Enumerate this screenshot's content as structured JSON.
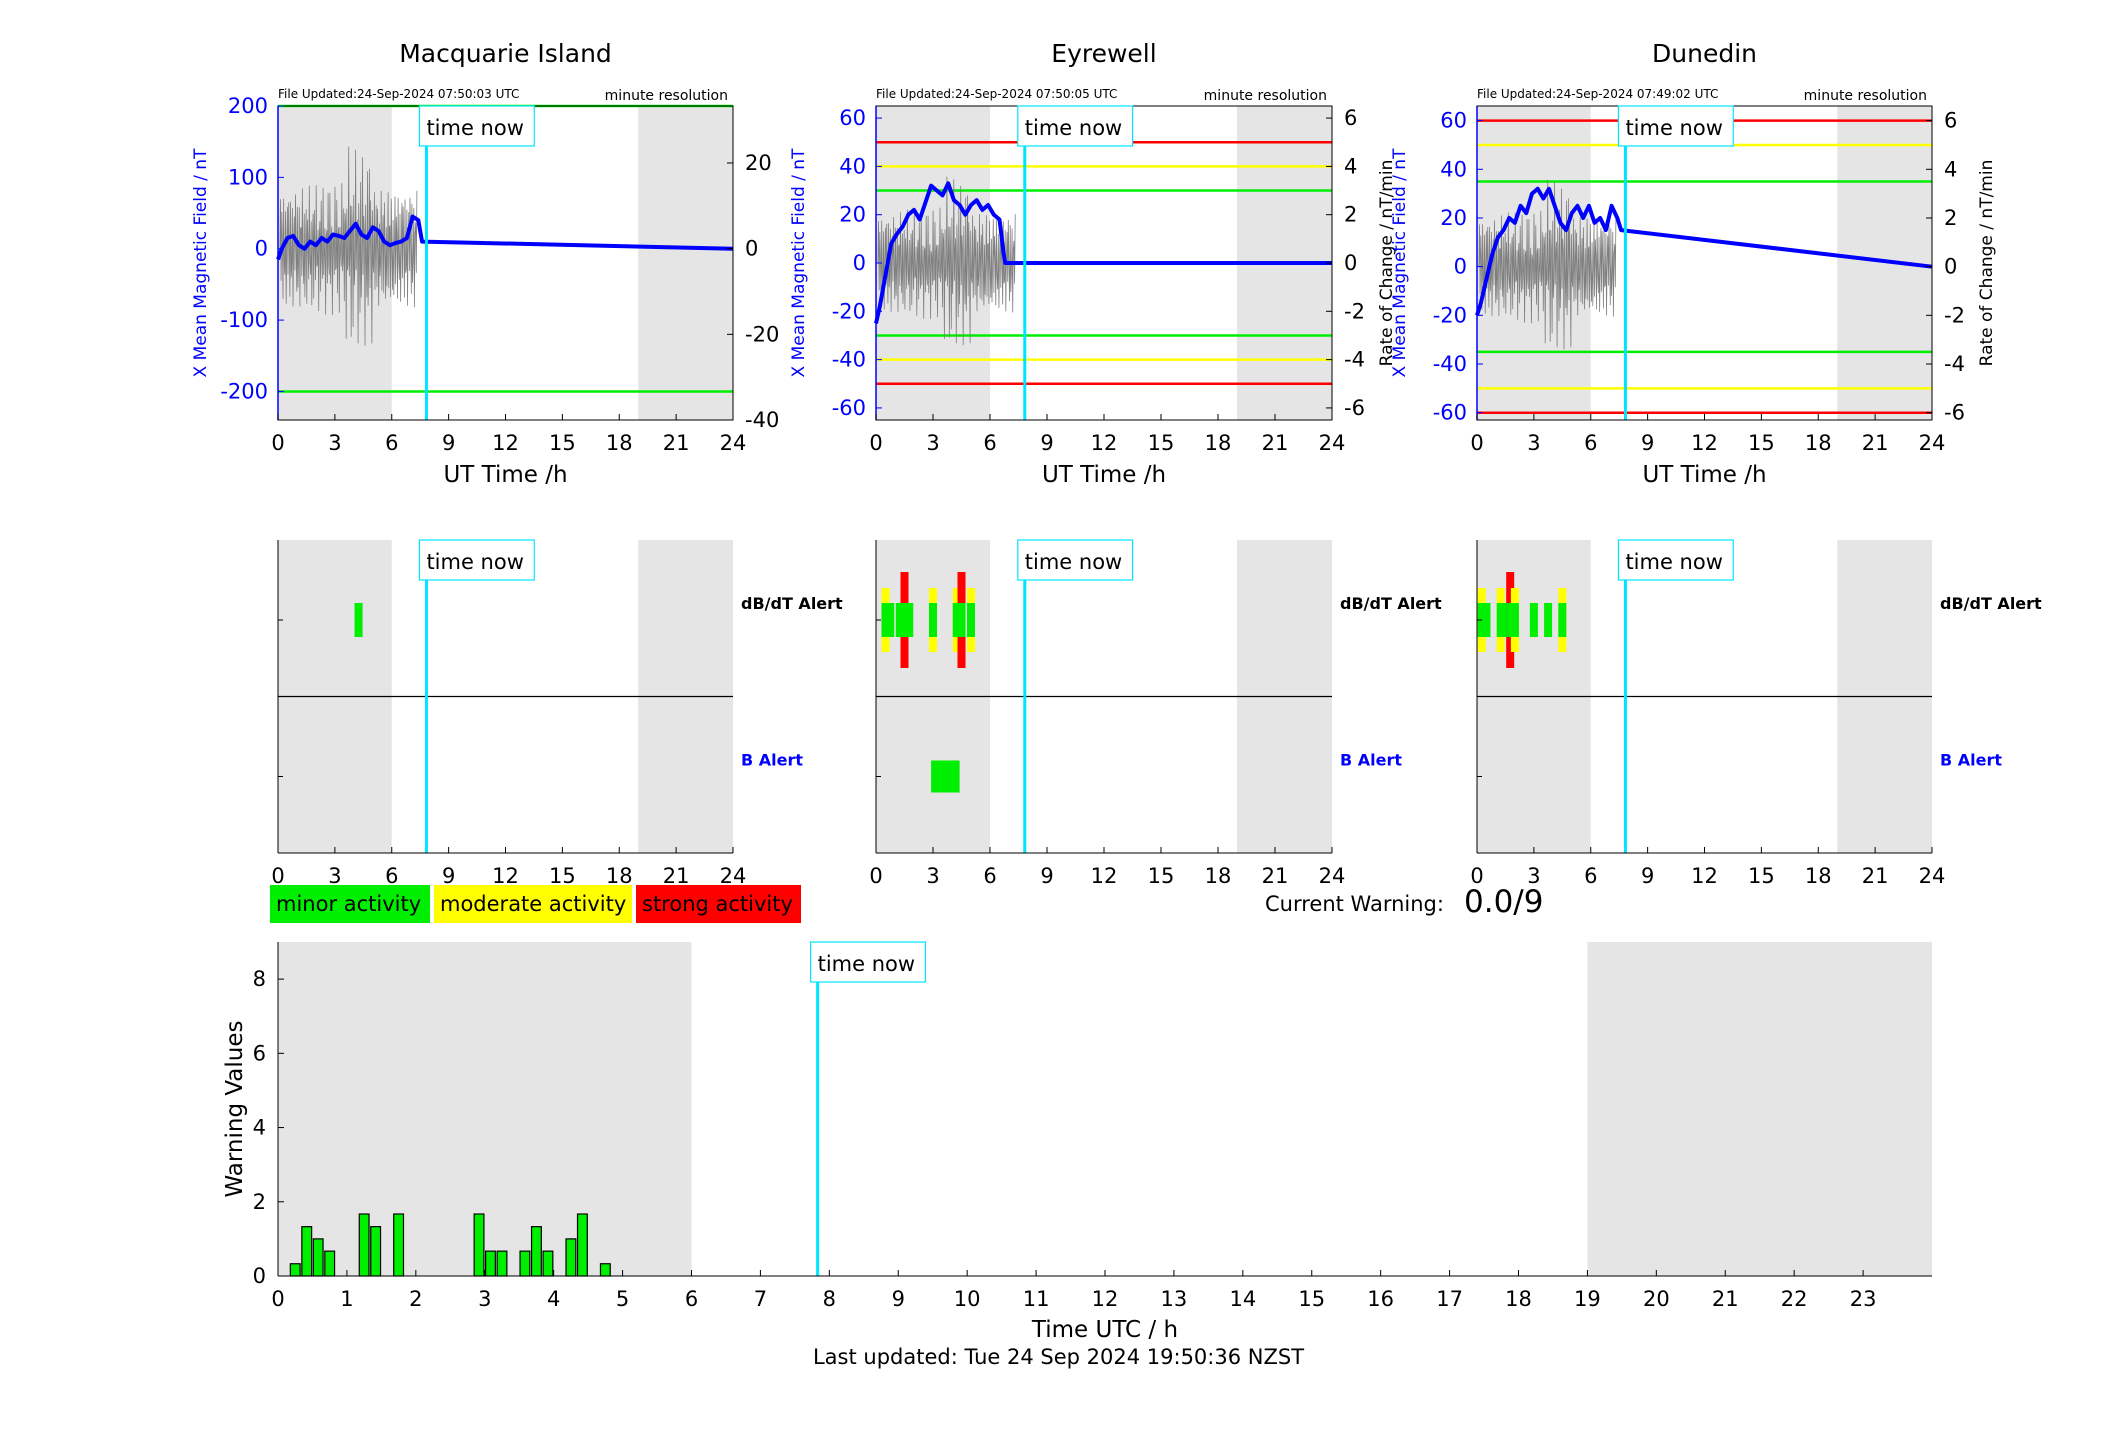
{
  "footer": "Last updated: Tue 24 Sep 2024 19:50:36 NZST",
  "current_warning": {
    "label": "Current Warning:",
    "value": "0.0/9"
  },
  "legend": [
    {
      "label": "minor activity",
      "color": "#00ee00"
    },
    {
      "label": "moderate activity",
      "color": "#ffff00"
    },
    {
      "label": "strong activity",
      "color": "#ff0000"
    }
  ],
  "colors": {
    "field": "#0000ff",
    "now_line": "#00e5ff",
    "night": "#e5e5e5",
    "green": "#00ee00",
    "yellow": "#ffff00",
    "red": "#ff0000"
  },
  "chart_data": [
    {
      "type": "line",
      "title": "Macquarie Island",
      "file_updated": "File Updated:24-Sep-2024 07:50:03 UTC",
      "resolution": "minute resolution",
      "now_label": "time now",
      "xlabel": "UT Time /h",
      "ylabel": "X Mean Magnetic Field / nT",
      "y2label": "",
      "xlim": [
        0,
        24
      ],
      "ylim": [
        -240,
        200
      ],
      "y2lim": [
        -40,
        33.3
      ],
      "xticks": [
        0,
        3,
        6,
        9,
        12,
        15,
        18,
        21,
        24
      ],
      "yticks": [
        -200,
        -100,
        0,
        100,
        200
      ],
      "y2ticks": [
        -40,
        -20,
        0,
        20
      ],
      "night": [
        [
          0,
          6
        ],
        [
          19,
          24
        ]
      ],
      "time_now": 7.83,
      "thresholds": [
        {
          "value": 200,
          "color": "green"
        },
        {
          "value": -200,
          "color": "green"
        }
      ],
      "series": [
        {
          "values_x": [
            0,
            0.2,
            0.5,
            0.8,
            1.1,
            1.4,
            1.7,
            2.0,
            2.3,
            2.6,
            2.9,
            3.2,
            3.5,
            3.8,
            4.1,
            4.4,
            4.7,
            5.0,
            5.3,
            5.6,
            5.9,
            6.2,
            6.5,
            6.8,
            7.1,
            7.4,
            7.6,
            24
          ],
          "values_y": [
            -15,
            0,
            15,
            18,
            5,
            0,
            10,
            5,
            15,
            10,
            20,
            18,
            15,
            25,
            35,
            20,
            15,
            30,
            25,
            10,
            5,
            8,
            10,
            15,
            45,
            40,
            10,
            0
          ]
        }
      ]
    },
    {
      "type": "line",
      "title": "Eyrewell",
      "file_updated": "File Updated:24-Sep-2024 07:50:05 UTC",
      "resolution": "minute resolution",
      "now_label": "time now",
      "xlabel": "UT Time /h",
      "ylabel": "X Mean Magnetic Field / nT",
      "y2label": "Rate of Change / nT/min",
      "xlim": [
        0,
        24
      ],
      "ylim": [
        -65,
        65
      ],
      "y2lim": [
        -6.5,
        6.5
      ],
      "xticks": [
        0,
        3,
        6,
        9,
        12,
        15,
        18,
        21,
        24
      ],
      "yticks": [
        -60,
        -40,
        -20,
        0,
        20,
        40,
        60
      ],
      "y2ticks": [
        -6,
        -4,
        -2,
        0,
        2,
        4,
        6
      ],
      "night": [
        [
          0,
          6
        ],
        [
          19,
          24
        ]
      ],
      "time_now": 7.83,
      "thresholds": [
        {
          "value": 50,
          "color": "red"
        },
        {
          "value": 40,
          "color": "yellow"
        },
        {
          "value": 30,
          "color": "green"
        },
        {
          "value": -30,
          "color": "green"
        },
        {
          "value": -40,
          "color": "yellow"
        },
        {
          "value": -50,
          "color": "red"
        }
      ],
      "series": [
        {
          "values_x": [
            0,
            0.2,
            0.5,
            0.8,
            1.1,
            1.4,
            1.7,
            2.0,
            2.3,
            2.6,
            2.9,
            3.2,
            3.5,
            3.8,
            4.1,
            4.4,
            4.7,
            5.0,
            5.3,
            5.6,
            5.9,
            6.2,
            6.5,
            6.7,
            6.8,
            24
          ],
          "values_y": [
            -25,
            -18,
            -5,
            8,
            12,
            15,
            20,
            22,
            18,
            25,
            32,
            30,
            28,
            33,
            26,
            24,
            20,
            24,
            26,
            22,
            24,
            20,
            18,
            5,
            0,
            0
          ]
        }
      ]
    },
    {
      "type": "line",
      "title": "Dunedin",
      "file_updated": "File Updated:24-Sep-2024 07:49:02 UTC",
      "resolution": "minute resolution",
      "now_label": "time now",
      "xlabel": "UT Time /h",
      "ylabel": "X Mean Magnetic Field / nT",
      "y2label": "Rate of Change / nT/min",
      "xlim": [
        0,
        24
      ],
      "ylim": [
        -63,
        66
      ],
      "y2lim": [
        -6.3,
        6.6
      ],
      "xticks": [
        0,
        3,
        6,
        9,
        12,
        15,
        18,
        21,
        24
      ],
      "yticks": [
        -60,
        -40,
        -20,
        0,
        20,
        40,
        60
      ],
      "y2ticks": [
        -6,
        -4,
        -2,
        0,
        2,
        4,
        6
      ],
      "night": [
        [
          0,
          6
        ],
        [
          19,
          24
        ]
      ],
      "time_now": 7.83,
      "thresholds": [
        {
          "value": 60,
          "color": "red"
        },
        {
          "value": 50,
          "color": "yellow"
        },
        {
          "value": 35,
          "color": "green"
        },
        {
          "value": -35,
          "color": "green"
        },
        {
          "value": -50,
          "color": "yellow"
        },
        {
          "value": -60,
          "color": "red"
        }
      ],
      "series": [
        {
          "values_x": [
            0,
            0.2,
            0.5,
            0.8,
            1.1,
            1.4,
            1.7,
            2.0,
            2.3,
            2.6,
            2.9,
            3.2,
            3.5,
            3.8,
            4.1,
            4.4,
            4.7,
            5.0,
            5.3,
            5.6,
            5.9,
            6.2,
            6.5,
            6.8,
            7.1,
            7.4,
            7.6,
            24
          ],
          "values_y": [
            -20,
            -15,
            -5,
            5,
            12,
            15,
            20,
            18,
            25,
            22,
            30,
            32,
            28,
            32,
            25,
            18,
            15,
            22,
            25,
            20,
            25,
            18,
            20,
            15,
            25,
            20,
            15,
            0
          ]
        }
      ]
    },
    {
      "type": "heatmap",
      "title": "",
      "now_label": "time now",
      "row_labels": [
        "dB/dT Alert",
        "B Alert"
      ],
      "xlim": [
        0,
        24
      ],
      "xticks": [
        0,
        3,
        6,
        9,
        12,
        15,
        18,
        21,
        24
      ],
      "night": [
        [
          0,
          6
        ],
        [
          19,
          24
        ]
      ],
      "time_now": 7.83,
      "dbdt_alerts": [
        {
          "t": 4.25,
          "level": "minor"
        }
      ],
      "b_alerts": []
    },
    {
      "type": "heatmap",
      "title": "",
      "now_label": "time now",
      "row_labels": [
        "dB/dT Alert",
        "B Alert"
      ],
      "xlim": [
        0,
        24
      ],
      "xticks": [
        0,
        3,
        6,
        9,
        12,
        15,
        18,
        21,
        24
      ],
      "night": [
        [
          0,
          6
        ],
        [
          19,
          24
        ]
      ],
      "time_now": 7.83,
      "dbdt_alerts": [
        {
          "t": 0.5,
          "level": "moderate"
        },
        {
          "t": 0.75,
          "level": "minor"
        },
        {
          "t": 1.25,
          "level": "minor"
        },
        {
          "t": 1.5,
          "level": "strong"
        },
        {
          "t": 1.75,
          "level": "minor"
        },
        {
          "t": 3.0,
          "level": "moderate"
        },
        {
          "t": 4.25,
          "level": "moderate"
        },
        {
          "t": 4.5,
          "level": "strong"
        },
        {
          "t": 5.0,
          "level": "moderate"
        }
      ],
      "b_alerts": [
        {
          "t0": 2.9,
          "t1": 4.4,
          "level": "minor"
        }
      ]
    },
    {
      "type": "heatmap",
      "title": "",
      "now_label": "time now",
      "row_labels": [
        "dB/dT Alert",
        "B Alert"
      ],
      "xlim": [
        0,
        24
      ],
      "xticks": [
        0,
        3,
        6,
        9,
        12,
        15,
        18,
        21,
        24
      ],
      "night": [
        [
          0,
          6
        ],
        [
          19,
          24
        ]
      ],
      "time_now": 7.83,
      "dbdt_alerts": [
        {
          "t": 0.25,
          "level": "moderate"
        },
        {
          "t": 0.5,
          "level": "minor"
        },
        {
          "t": 1.25,
          "level": "moderate"
        },
        {
          "t": 1.5,
          "level": "minor"
        },
        {
          "t": 1.75,
          "level": "strong"
        },
        {
          "t": 2.0,
          "level": "moderate"
        },
        {
          "t": 3.0,
          "level": "minor"
        },
        {
          "t": 3.75,
          "level": "minor"
        },
        {
          "t": 4.5,
          "level": "moderate"
        }
      ],
      "b_alerts": []
    },
    {
      "type": "bar",
      "title": "",
      "now_label": "time now",
      "xlabel": "Time UTC / h",
      "ylabel": "Warning Values",
      "xlim": [
        0,
        24
      ],
      "ylim": [
        0,
        9
      ],
      "xticks": [
        0,
        1,
        2,
        3,
        4,
        5,
        6,
        7,
        8,
        9,
        10,
        11,
        12,
        13,
        14,
        15,
        16,
        17,
        18,
        19,
        20,
        21,
        22,
        23
      ],
      "yticks": [
        0,
        2,
        4,
        6,
        8
      ],
      "night": [
        [
          0,
          6
        ],
        [
          19,
          24
        ]
      ],
      "time_now": 7.83,
      "x": [
        0.25,
        0.417,
        0.583,
        0.75,
        1.25,
        1.417,
        1.75,
        2.917,
        3.083,
        3.25,
        3.583,
        3.75,
        3.917,
        4.25,
        4.417,
        4.75
      ],
      "values": [
        0.33,
        1.33,
        1.0,
        0.67,
        1.67,
        1.33,
        1.67,
        1.67,
        0.67,
        0.67,
        0.67,
        1.33,
        0.67,
        1.0,
        1.67,
        0.33
      ]
    }
  ]
}
